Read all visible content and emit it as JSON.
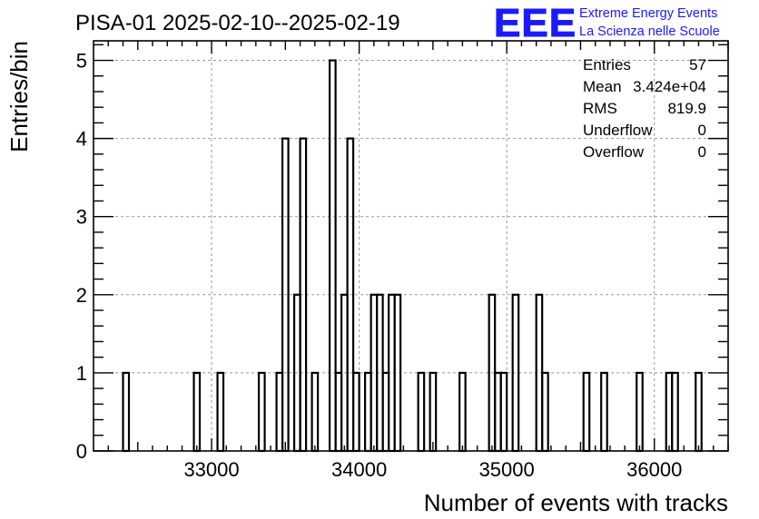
{
  "chart_data": {
    "type": "histogram",
    "title": "PISA-01 2025-02-10--2025-02-19",
    "xlabel": "Number of events with tracks",
    "ylabel": "Entries/bin",
    "xlim": [
      32200,
      36500
    ],
    "ylim": [
      0,
      5.25
    ],
    "x_ticks": [
      33000,
      34000,
      35000,
      36000
    ],
    "y_ticks": [
      0,
      1,
      2,
      3,
      4,
      5
    ],
    "grid": true,
    "bin_width": 40,
    "bins": [
      {
        "x": 32400,
        "count": 1
      },
      {
        "x": 32880,
        "count": 1
      },
      {
        "x": 33040,
        "count": 1
      },
      {
        "x": 33320,
        "count": 1
      },
      {
        "x": 33440,
        "count": 1
      },
      {
        "x": 33480,
        "count": 4
      },
      {
        "x": 33560,
        "count": 2
      },
      {
        "x": 33600,
        "count": 4
      },
      {
        "x": 33680,
        "count": 1
      },
      {
        "x": 33800,
        "count": 5
      },
      {
        "x": 33840,
        "count": 1
      },
      {
        "x": 33880,
        "count": 2
      },
      {
        "x": 33920,
        "count": 4
      },
      {
        "x": 33960,
        "count": 1
      },
      {
        "x": 34040,
        "count": 1
      },
      {
        "x": 34080,
        "count": 2
      },
      {
        "x": 34120,
        "count": 2
      },
      {
        "x": 34160,
        "count": 1
      },
      {
        "x": 34200,
        "count": 2
      },
      {
        "x": 34240,
        "count": 2
      },
      {
        "x": 34400,
        "count": 1
      },
      {
        "x": 34480,
        "count": 1
      },
      {
        "x": 34680,
        "count": 1
      },
      {
        "x": 34880,
        "count": 2
      },
      {
        "x": 34920,
        "count": 1
      },
      {
        "x": 34960,
        "count": 1
      },
      {
        "x": 35040,
        "count": 2
      },
      {
        "x": 35200,
        "count": 2
      },
      {
        "x": 35240,
        "count": 1
      },
      {
        "x": 35520,
        "count": 1
      },
      {
        "x": 35640,
        "count": 1
      },
      {
        "x": 35880,
        "count": 1
      },
      {
        "x": 36080,
        "count": 1
      },
      {
        "x": 36120,
        "count": 1
      },
      {
        "x": 36280,
        "count": 1
      }
    ],
    "stats": [
      {
        "label": "Entries",
        "value": "57"
      },
      {
        "label": "Mean",
        "value": "3.424e+04"
      },
      {
        "label": "RMS",
        "value": "819.9"
      },
      {
        "label": "Underflow",
        "value": "0"
      },
      {
        "label": "Overflow",
        "value": "0"
      }
    ]
  },
  "logo": {
    "text": "EEE",
    "line1": "Extreme Energy Events",
    "line2": "La Scienza nelle Scuole",
    "color": "#1a1aff"
  }
}
